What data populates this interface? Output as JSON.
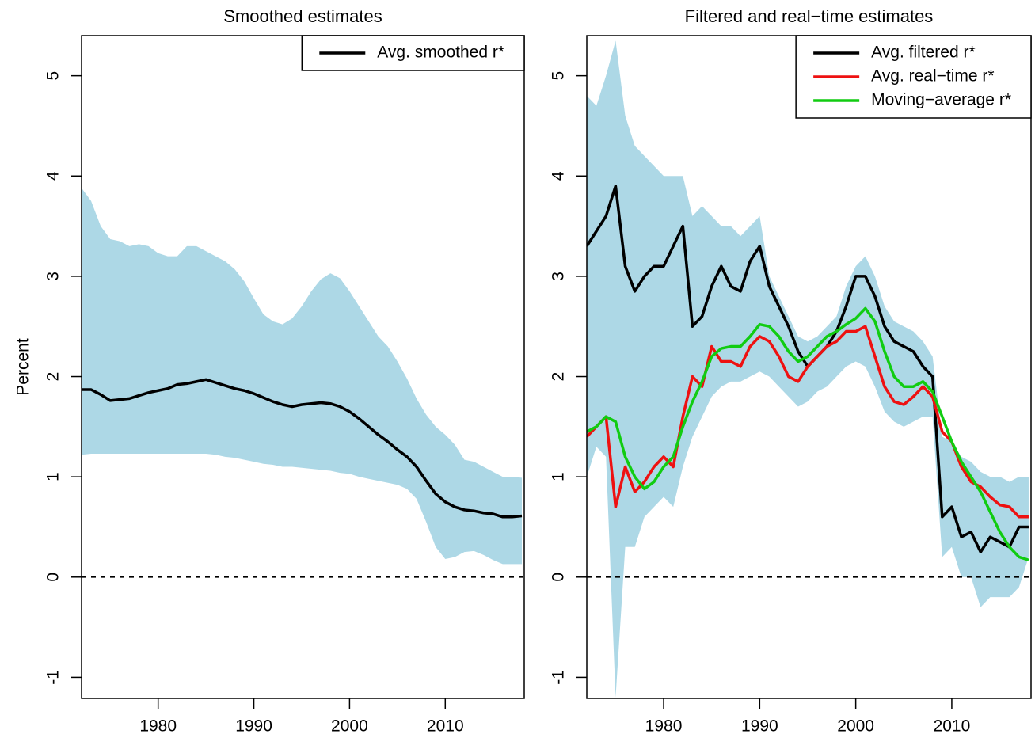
{
  "chart_data": [
    {
      "type": "line",
      "title": "Smoothed estimates",
      "ylabel": "Percent",
      "x": [
        1972,
        1973,
        1974,
        1975,
        1976,
        1977,
        1978,
        1979,
        1980,
        1981,
        1982,
        1983,
        1984,
        1985,
        1986,
        1987,
        1988,
        1989,
        1990,
        1991,
        1992,
        1993,
        1994,
        1995,
        1996,
        1997,
        1998,
        1999,
        2000,
        2001,
        2002,
        2003,
        2004,
        2005,
        2006,
        2007,
        2008,
        2009,
        2010,
        2011,
        2012,
        2013,
        2014,
        2015,
        2016,
        2017,
        2018
      ],
      "band": {
        "color": "#add8e6",
        "lower": [
          1.22,
          1.23,
          1.23,
          1.23,
          1.23,
          1.23,
          1.23,
          1.23,
          1.23,
          1.23,
          1.23,
          1.23,
          1.23,
          1.23,
          1.22,
          1.2,
          1.19,
          1.17,
          1.15,
          1.13,
          1.12,
          1.1,
          1.1,
          1.09,
          1.08,
          1.07,
          1.06,
          1.04,
          1.03,
          1.0,
          0.98,
          0.96,
          0.94,
          0.92,
          0.88,
          0.78,
          0.55,
          0.3,
          0.18,
          0.2,
          0.25,
          0.26,
          0.22,
          0.17,
          0.13,
          0.13,
          0.13
        ],
        "upper": [
          3.88,
          3.75,
          3.5,
          3.37,
          3.35,
          3.3,
          3.32,
          3.3,
          3.23,
          3.2,
          3.2,
          3.3,
          3.3,
          3.25,
          3.2,
          3.15,
          3.07,
          2.95,
          2.78,
          2.62,
          2.55,
          2.52,
          2.58,
          2.7,
          2.85,
          2.97,
          3.03,
          2.98,
          2.85,
          2.7,
          2.55,
          2.4,
          2.3,
          2.15,
          1.98,
          1.78,
          1.62,
          1.5,
          1.42,
          1.32,
          1.17,
          1.15,
          1.1,
          1.05,
          1.0,
          1.0,
          0.99
        ]
      },
      "series": [
        {
          "name": "Avg. smoothed r*",
          "color": "#000000",
          "values": [
            1.87,
            1.87,
            1.82,
            1.76,
            1.77,
            1.78,
            1.81,
            1.84,
            1.86,
            1.88,
            1.92,
            1.93,
            1.95,
            1.97,
            1.94,
            1.91,
            1.88,
            1.86,
            1.83,
            1.79,
            1.75,
            1.72,
            1.7,
            1.72,
            1.73,
            1.74,
            1.73,
            1.7,
            1.65,
            1.58,
            1.5,
            1.42,
            1.35,
            1.27,
            1.2,
            1.1,
            0.96,
            0.83,
            0.75,
            0.7,
            0.67,
            0.66,
            0.64,
            0.63,
            0.6,
            0.6,
            0.61
          ]
        }
      ],
      "reference_line": 0,
      "xlim": [
        1972,
        2018.25
      ],
      "ylim": [
        -1.21,
        5.4
      ],
      "xticks": [
        1980,
        1990,
        2000,
        2010
      ],
      "yticks": [
        -1,
        0,
        1,
        2,
        3,
        4,
        5
      ],
      "legend": "topright"
    },
    {
      "type": "line",
      "title": "Filtered and real−time estimates",
      "x": [
        1972,
        1973,
        1974,
        1975,
        1976,
        1977,
        1978,
        1979,
        1980,
        1981,
        1982,
        1983,
        1984,
        1985,
        1986,
        1987,
        1988,
        1989,
        1990,
        1991,
        1992,
        1993,
        1994,
        1995,
        1996,
        1997,
        1998,
        1999,
        2000,
        2001,
        2002,
        2003,
        2004,
        2005,
        2006,
        2007,
        2008,
        2009,
        2010,
        2011,
        2012,
        2013,
        2014,
        2015,
        2016,
        2017,
        2018
      ],
      "band": {
        "color": "#add8e6",
        "lower": [
          1.0,
          1.3,
          1.2,
          -1.2,
          0.3,
          0.3,
          0.6,
          0.7,
          0.8,
          0.7,
          1.1,
          1.4,
          1.6,
          1.8,
          1.9,
          1.95,
          1.95,
          2.0,
          2.05,
          2.0,
          1.9,
          1.8,
          1.7,
          1.75,
          1.85,
          1.9,
          2.0,
          2.1,
          2.15,
          2.1,
          1.9,
          1.65,
          1.55,
          1.5,
          1.55,
          1.6,
          1.6,
          0.2,
          0.3,
          0.0,
          0.0,
          -0.3,
          -0.2,
          -0.2,
          -0.2,
          -0.1,
          0.2
        ],
        "upper": [
          4.8,
          4.7,
          5.0,
          5.35,
          4.6,
          4.3,
          4.2,
          4.1,
          4.0,
          4.0,
          4.0,
          3.6,
          3.7,
          3.6,
          3.5,
          3.5,
          3.4,
          3.5,
          3.6,
          3.0,
          2.8,
          2.6,
          2.4,
          2.35,
          2.4,
          2.5,
          2.6,
          2.9,
          3.1,
          3.2,
          3.0,
          2.7,
          2.55,
          2.5,
          2.45,
          2.35,
          2.2,
          1.4,
          1.35,
          1.2,
          1.15,
          1.05,
          1.0,
          1.0,
          0.95,
          1.0,
          1.0
        ]
      },
      "series": [
        {
          "name": "Avg. filtered r*",
          "color": "#000000",
          "values": [
            3.3,
            3.45,
            3.6,
            3.9,
            3.1,
            2.85,
            3.0,
            3.1,
            3.1,
            3.3,
            3.5,
            2.5,
            2.6,
            2.9,
            3.1,
            2.9,
            2.85,
            3.15,
            3.3,
            2.9,
            2.7,
            2.5,
            2.25,
            2.1,
            2.2,
            2.3,
            2.45,
            2.7,
            3.0,
            3.0,
            2.8,
            2.5,
            2.35,
            2.3,
            2.25,
            2.1,
            2.0,
            0.6,
            0.7,
            0.4,
            0.45,
            0.25,
            0.4,
            0.35,
            0.3,
            0.5,
            0.5
          ]
        },
        {
          "name": "Avg. real−time r*",
          "color": "#ee1111",
          "values": [
            1.4,
            1.5,
            1.6,
            0.7,
            1.1,
            0.85,
            0.95,
            1.1,
            1.2,
            1.1,
            1.6,
            2.0,
            1.9,
            2.3,
            2.15,
            2.15,
            2.1,
            2.3,
            2.4,
            2.35,
            2.2,
            2.0,
            1.95,
            2.1,
            2.2,
            2.3,
            2.35,
            2.45,
            2.45,
            2.5,
            2.2,
            1.9,
            1.75,
            1.72,
            1.8,
            1.9,
            1.8,
            1.45,
            1.35,
            1.1,
            0.95,
            0.9,
            0.8,
            0.72,
            0.7,
            0.6,
            0.6
          ]
        },
        {
          "name": "Moving−average r*",
          "color": "#11cc11",
          "values": [
            1.45,
            1.5,
            1.6,
            1.55,
            1.2,
            1.0,
            0.88,
            0.95,
            1.1,
            1.2,
            1.5,
            1.75,
            1.95,
            2.2,
            2.28,
            2.3,
            2.3,
            2.4,
            2.52,
            2.5,
            2.4,
            2.25,
            2.15,
            2.2,
            2.3,
            2.4,
            2.45,
            2.52,
            2.58,
            2.68,
            2.55,
            2.25,
            2.0,
            1.9,
            1.9,
            1.95,
            1.85,
            1.6,
            1.35,
            1.15,
            1.0,
            0.85,
            0.65,
            0.45,
            0.3,
            0.2,
            0.17
          ]
        }
      ],
      "reference_line": 0,
      "xlim": [
        1972,
        2018.25
      ],
      "ylim": [
        -1.21,
        5.4
      ],
      "xticks": [
        1980,
        1990,
        2000,
        2010
      ],
      "yticks": [
        -1,
        0,
        1,
        2,
        3,
        4,
        5
      ],
      "legend": "topright"
    }
  ]
}
